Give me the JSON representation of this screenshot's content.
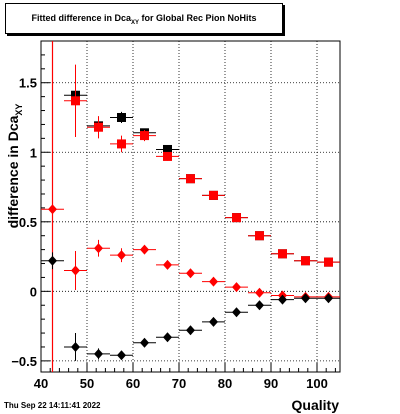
{
  "timestamp": "Thu Sep 22 14:11:41 2022",
  "chart_data": {
    "type": "scatter",
    "title_prefix": "Fitted difference in Dca",
    "title_sub": "XY",
    "title_suffix": " for Global Rec Pion NoHits",
    "xlabel": "Quality",
    "ylabel_prefix": "difference in Dca",
    "ylabel_sub": "XY",
    "xlim": [
      40,
      105
    ],
    "ylim": [
      -0.58,
      1.8
    ],
    "xticks": [
      40,
      50,
      60,
      70,
      80,
      90,
      100
    ],
    "yticks": [
      -0.5,
      0,
      0.5,
      1,
      1.5
    ],
    "ytick_labels": [
      "−0.5",
      "0",
      "0.5",
      "1",
      "1.5"
    ],
    "grid": true,
    "vertical_marker_x": 42.5,
    "series": [
      {
        "marker": "square",
        "color": "#000000",
        "x": [
          47.5,
          52.5,
          57.5,
          62.5,
          67.5,
          72.5,
          77.5,
          82.5,
          87.5,
          92.5,
          97.5,
          102.5
        ],
        "y": [
          1.41,
          1.19,
          1.25,
          1.14,
          1.02,
          0.81,
          0.69,
          0.53,
          0.4,
          0.27,
          0.22,
          0.21
        ],
        "yerr": [
          0.05,
          0.03,
          0.04,
          0.03,
          0.02,
          0.02,
          0.02,
          0.02,
          0.01,
          0.01,
          0.01,
          0.01
        ]
      },
      {
        "marker": "square",
        "color": "#ff0000",
        "x": [
          47.5,
          52.5,
          57.5,
          62.5,
          67.5,
          72.5,
          77.5,
          82.5,
          87.5,
          92.5,
          97.5,
          102.5
        ],
        "y": [
          1.37,
          1.18,
          1.06,
          1.12,
          0.97,
          0.81,
          0.69,
          0.53,
          0.4,
          0.27,
          0.22,
          0.21
        ],
        "yerr": [
          0.26,
          0.08,
          0.06,
          0.04,
          0.03,
          0.02,
          0.02,
          0.02,
          0.01,
          0.01,
          0.01,
          0.01
        ]
      },
      {
        "marker": "diamond",
        "color": "#ff0000",
        "x": [
          42.5,
          47.5,
          52.5,
          57.5,
          62.5,
          67.5,
          72.5,
          77.5,
          82.5,
          87.5,
          92.5,
          97.5,
          102.5
        ],
        "y": [
          0.59,
          0.15,
          0.31,
          0.26,
          0.3,
          0.19,
          0.13,
          0.07,
          0.03,
          -0.01,
          -0.03,
          -0.04,
          -0.04
        ],
        "yerr": [
          0.0,
          0.14,
          0.06,
          0.05,
          0.03,
          0.02,
          0.02,
          0.02,
          0.01,
          0.01,
          0.01,
          0.01,
          0.01
        ]
      },
      {
        "marker": "diamond",
        "color": "#000000",
        "x": [
          42.5,
          47.5,
          52.5,
          57.5,
          62.5,
          67.5,
          72.5,
          77.5,
          82.5,
          87.5,
          92.5,
          97.5,
          102.5
        ],
        "y": [
          0.22,
          -0.4,
          -0.45,
          -0.46,
          -0.37,
          -0.33,
          -0.28,
          -0.22,
          -0.15,
          -0.1,
          -0.06,
          -0.05,
          -0.05
        ],
        "yerr": [
          0.06,
          0.1,
          0.04,
          0.03,
          0.02,
          0.02,
          0.02,
          0.01,
          0.01,
          0.01,
          0.01,
          0.01,
          0.01
        ]
      }
    ]
  }
}
